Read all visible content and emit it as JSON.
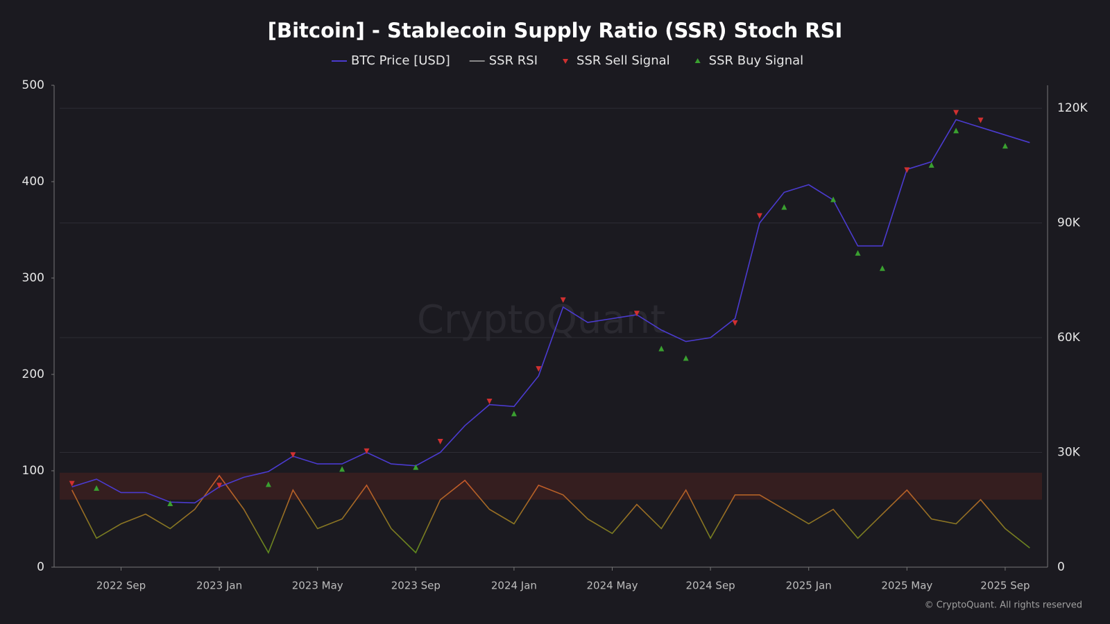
{
  "chart_data": {
    "type": "line",
    "title": "[Bitcoin] - Stablecoin Supply Ratio (SSR) Stoch RSI",
    "watermark": "CryptoQuant",
    "credit": "© CryptoQuant. All rights reserved",
    "x": [
      "2022 Jul",
      "2022 Aug",
      "2022 Sep",
      "2022 Oct",
      "2022 Nov",
      "2022 Dec",
      "2023 Jan",
      "2023 Feb",
      "2023 Mar",
      "2023 Apr",
      "2023 May",
      "2023 Jun",
      "2023 Jul",
      "2023 Aug",
      "2023 Sep",
      "2023 Oct",
      "2023 Nov",
      "2023 Dec",
      "2024 Jan",
      "2024 Feb",
      "2024 Mar",
      "2024 Apr",
      "2024 May",
      "2024 Jun",
      "2024 Jul",
      "2024 Aug",
      "2024 Sep",
      "2024 Oct",
      "2024 Nov",
      "2024 Dec",
      "2025 Jan",
      "2025 Feb",
      "2025 Mar",
      "2025 Apr",
      "2025 May",
      "2025 Jun",
      "2025 Jul",
      "2025 Aug",
      "2025 Sep",
      "2025 Oct"
    ],
    "xticks": [
      "2022 Sep",
      "2023 Jan",
      "2023 May",
      "2023 Sep",
      "2024 Jan",
      "2024 May",
      "2024 Sep",
      "2025 Jan",
      "2025 May",
      "2025 Sep"
    ],
    "ylim": [
      0,
      500
    ],
    "yticks": [
      0,
      100,
      200,
      300,
      400,
      500
    ],
    "y2lim": [
      0,
      126000
    ],
    "y2ticks": [
      0,
      {
        "value": 30000,
        "label": "30K"
      },
      {
        "value": 60000,
        "label": "60K"
      },
      {
        "value": 90000,
        "label": "90K"
      },
      {
        "value": 120000,
        "label": "120K"
      }
    ],
    "grid": true,
    "highlight_band": {
      "range": [
        70,
        98
      ],
      "color": "#3a2020"
    },
    "series": [
      {
        "name": "BTC Price [USD]",
        "color": "#4b3bd0",
        "axis": "y2",
        "type": "line",
        "values": [
          21000,
          23000,
          19500,
          19500,
          17000,
          16800,
          21000,
          23500,
          25000,
          29000,
          27000,
          27000,
          30000,
          27000,
          26500,
          30000,
          37000,
          42500,
          42000,
          50000,
          68000,
          64000,
          65000,
          66000,
          62000,
          59000,
          60000,
          65000,
          90000,
          98000,
          100000,
          96000,
          84000,
          84000,
          104000,
          106000,
          117000,
          115000,
          113000,
          111000
        ]
      },
      {
        "name": "SSR RSI",
        "color": "#8a8a8a",
        "gradient_colors": [
          "#d0552a",
          "#5f8a1e"
        ],
        "type": "line",
        "values": [
          80,
          30,
          45,
          55,
          40,
          60,
          95,
          60,
          15,
          80,
          40,
          50,
          85,
          40,
          15,
          70,
          90,
          60,
          45,
          85,
          75,
          50,
          35,
          65,
          40,
          80,
          30,
          75,
          75,
          60,
          45,
          60,
          30,
          55,
          80,
          50,
          45,
          70,
          40,
          20
        ]
      },
      {
        "name": "SSR Sell Signal",
        "color": "#d03030",
        "axis": "y2",
        "type": "scatter",
        "marker": "down",
        "x": [
          "2022 Jul",
          "2023 Jan",
          "2023 Apr",
          "2023 Jul",
          "2023 Oct",
          "2023 Dec",
          "2024 Feb",
          "2024 Mar",
          "2024 Jun",
          "2024 Oct",
          "2024 Nov",
          "2025 May",
          "2025 Jul",
          "2025 Aug"
        ],
        "values": [
          22000,
          21500,
          29500,
          30500,
          33000,
          43500,
          52000,
          70000,
          66500,
          64000,
          92000,
          104000,
          119000,
          117000
        ]
      },
      {
        "name": "SSR Buy Signal",
        "color": "#3aa030",
        "axis": "y2",
        "type": "scatter",
        "marker": "up",
        "x": [
          "2022 Aug",
          "2022 Nov",
          "2023 Mar",
          "2023 Jun",
          "2023 Sep",
          "2024 Jan",
          "2024 Jul",
          "2024 Aug",
          "2024 Dec",
          "2025 Feb",
          "2025 Mar",
          "2025 Apr",
          "2025 Jun",
          "2025 Jul",
          "2025 Sep"
        ],
        "values": [
          20500,
          16500,
          21500,
          25500,
          26000,
          40000,
          57000,
          54500,
          94000,
          96000,
          82000,
          78000,
          105000,
          114000,
          110000
        ]
      }
    ]
  }
}
